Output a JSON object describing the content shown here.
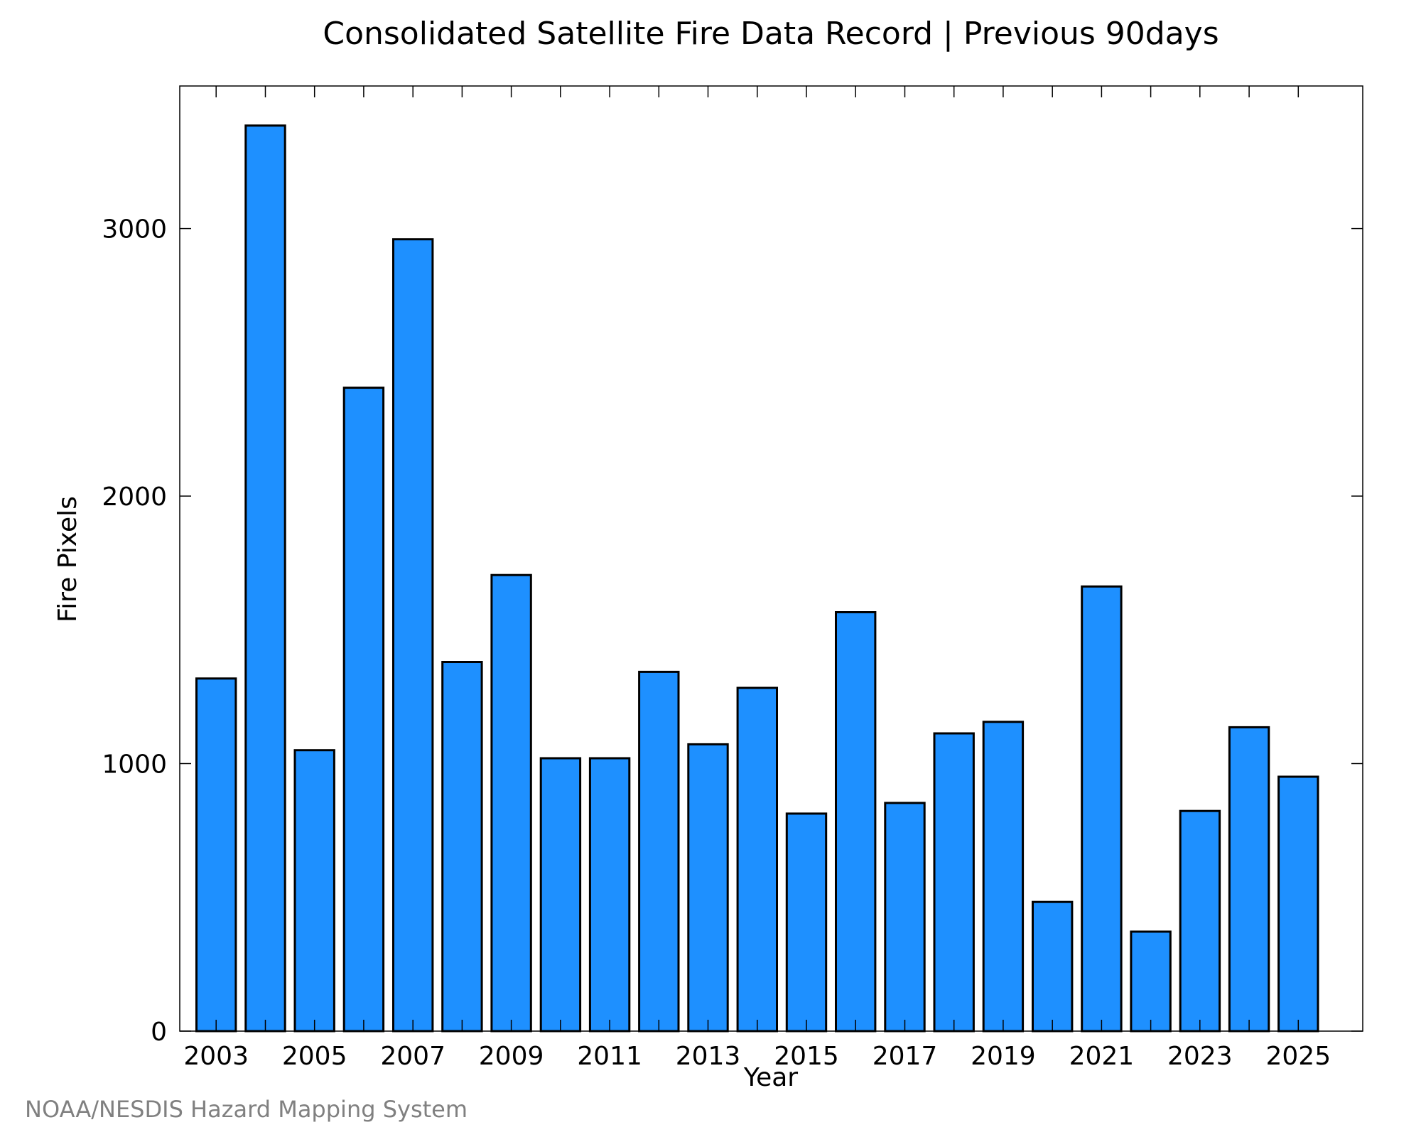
{
  "chart_data": {
    "type": "bar",
    "title": "Consolidated Satellite Fire Data Record | Previous 90days",
    "xlabel": "Year",
    "ylabel": "Fire Pixels",
    "categories": [
      "2003",
      "2004",
      "2005",
      "2006",
      "2007",
      "2008",
      "2009",
      "2010",
      "2011",
      "2012",
      "2013",
      "2014",
      "2015",
      "2016",
      "2017",
      "2018",
      "2019",
      "2020",
      "2021",
      "2022",
      "2023",
      "2024",
      "2025"
    ],
    "values": [
      1318,
      3385,
      1050,
      2405,
      2960,
      1380,
      1705,
      1020,
      1020,
      1343,
      1072,
      1283,
      813,
      1566,
      853,
      1113,
      1156,
      483,
      1662,
      372,
      823,
      1136,
      951
    ],
    "x_tick_labels": [
      "2003",
      "2005",
      "2007",
      "2009",
      "2011",
      "2013",
      "2015",
      "2017",
      "2019",
      "2021",
      "2023",
      "2025"
    ],
    "y_ticks": [
      0,
      1000,
      2000,
      3000
    ],
    "ylim": [
      0,
      3533
    ],
    "grid": false,
    "legend": "none",
    "bar_color": "#1E90FF",
    "bar_edge_color": "#000000"
  },
  "footer": {
    "credit": "NOAA/NESDIS Hazard Mapping System"
  }
}
